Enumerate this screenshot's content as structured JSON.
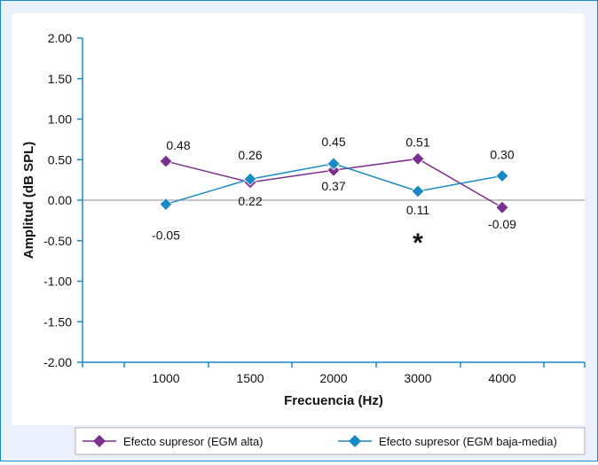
{
  "chart_data": {
    "type": "line",
    "xlabel": "Frecuencia (Hz)",
    "ylabel": "Amplitud (dB SPL)",
    "categories": [
      "1000",
      "1500",
      "2000",
      "3000",
      "4000"
    ],
    "ylim": [
      -2.0,
      2.0
    ],
    "yticks": [
      "2.00",
      "1.50",
      "1.00",
      "0.50",
      "0.00",
      "-0.50",
      "-1.00",
      "-1.50",
      "-2.00"
    ],
    "grid": false,
    "legend_position": "bottom",
    "series": [
      {
        "name": "Efecto supresor (EGM alta)",
        "values": [
          0.48,
          0.22,
          0.37,
          0.51,
          -0.09
        ],
        "labels": [
          "0.48",
          "0.22",
          "0.37",
          "0.51",
          "-0.09"
        ],
        "color": "#7b2f8e"
      },
      {
        "name": "Efecto supresor (EGM baja-media)",
        "values": [
          -0.05,
          0.26,
          0.45,
          0.11,
          0.3
        ],
        "labels": [
          "-0.05",
          "0.26",
          "0.45",
          "0.11",
          "0.30"
        ],
        "color": "#1a8ac6"
      }
    ],
    "annotation": {
      "text": "*",
      "category": "3000"
    },
    "colors": {
      "frame": "#1a8ac6",
      "axis": "#1a8ac6",
      "zero_line": "#b0b0b0",
      "background": "#eaf1fa"
    }
  }
}
